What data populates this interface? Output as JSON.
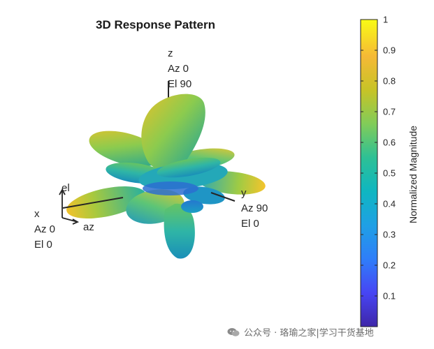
{
  "chart_data": {
    "type": "surface-3d",
    "title": "3D Response Pattern",
    "axes": {
      "x": [
        "x",
        "Az 0",
        "El 0"
      ],
      "y": [
        "y",
        "Az 90",
        "El 0"
      ],
      "z": [
        "z",
        "Az 0",
        "El 90"
      ],
      "triad": [
        "el",
        "az"
      ]
    },
    "colorbar": {
      "label": "Normalized Magnitude",
      "range": [
        0,
        1
      ],
      "ticks": [
        "0.1",
        "0.2",
        "0.3",
        "0.4",
        "0.5",
        "0.6",
        "0.7",
        "0.8",
        "0.9",
        "1"
      ],
      "colormap": [
        "#3e26a8",
        "#4745f4",
        "#2f7ef9",
        "#1fa0e5",
        "#0fb6c1",
        "#2dc095",
        "#81cc59",
        "#c7c327",
        "#f5b936",
        "#f9fb15"
      ]
    }
  },
  "watermark": "公众号 · 珞瑜之家|学习干货基地"
}
